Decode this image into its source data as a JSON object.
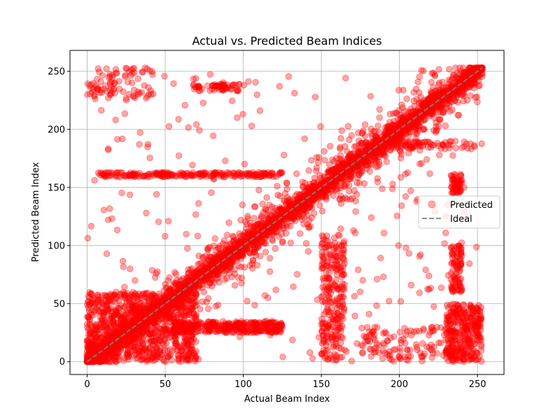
{
  "chart_data": {
    "type": "scatter",
    "title": "Actual vs. Predicted Beam Indices",
    "xlabel": "Actual Beam Index",
    "ylabel": "Predicted Beam Index",
    "xlim": [
      -11,
      267
    ],
    "ylim": [
      -11,
      268
    ],
    "xticks": [
      0,
      50,
      100,
      150,
      200,
      250
    ],
    "yticks": [
      0,
      50,
      100,
      150,
      200,
      250
    ],
    "grid": true,
    "legend": {
      "placement": "right",
      "entries": [
        "Predicted",
        "Ideal"
      ]
    },
    "series": [
      {
        "name": "Predicted",
        "color": "#ff0000",
        "opacity": 0.35,
        "clusters": [
          {
            "x": [
              0,
              253
            ],
            "y": [
              0,
              253
            ],
            "n": 2600,
            "jitter": 9
          },
          {
            "x": [
              0,
              253
            ],
            "y": [
              0,
              253
            ],
            "n": 900,
            "jitter": 24
          },
          {
            "x": [
              0,
              70
            ],
            "y": [
              0,
              60
            ],
            "n": 900,
            "jitter": 0
          },
          {
            "x": [
              55,
              125
            ],
            "y": [
              25,
              35
            ],
            "n": 350,
            "jitter": 0
          },
          {
            "x": [
              5,
              125
            ],
            "y": [
              159,
              163
            ],
            "n": 220,
            "jitter": 0
          },
          {
            "x": [
              0,
              42
            ],
            "y": [
              226,
              253
            ],
            "n": 90,
            "jitter": 0
          },
          {
            "x": [
              68,
              98
            ],
            "y": [
              233,
              239
            ],
            "n": 60,
            "jitter": 0
          },
          {
            "x": [
              150,
              165
            ],
            "y": [
              0,
              110
            ],
            "n": 260,
            "jitter": 0
          },
          {
            "x": [
              230,
              253
            ],
            "y": [
              0,
              50
            ],
            "n": 320,
            "jitter": 0
          },
          {
            "x": [
              233,
              240
            ],
            "y": [
              60,
              100
            ],
            "n": 90,
            "jitter": 0
          },
          {
            "x": [
              233,
              240
            ],
            "y": [
              145,
              162
            ],
            "n": 60,
            "jitter": 0
          },
          {
            "x": [
              175,
              235
            ],
            "y": [
              0,
              30
            ],
            "n": 120,
            "jitter": 0
          },
          {
            "x": [
              195,
              250
            ],
            "y": [
              183,
              190
            ],
            "n": 70,
            "jitter": 0
          },
          {
            "x": [
              0,
              253
            ],
            "y": [
              0,
              253
            ],
            "n": 260,
            "jitter": 0
          }
        ],
        "seed": 11
      },
      {
        "name": "Ideal",
        "color": "#808080",
        "style": "dashed",
        "x": [
          0,
          253
        ],
        "y": [
          0,
          253
        ]
      }
    ]
  }
}
